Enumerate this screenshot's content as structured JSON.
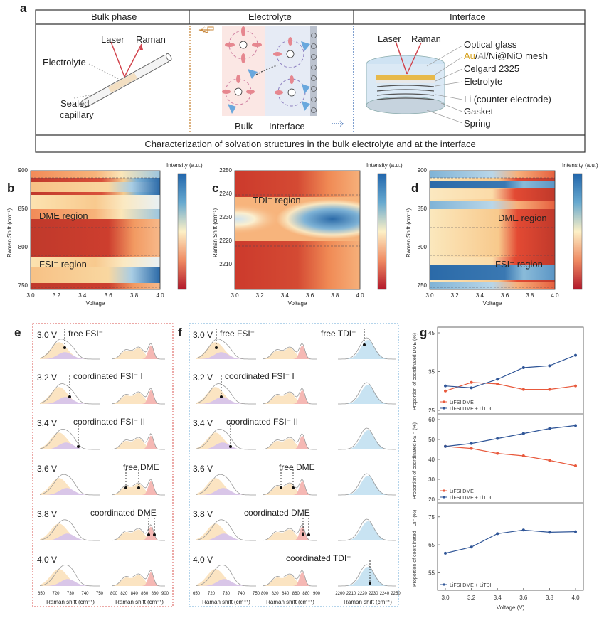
{
  "figure": {
    "panel_a": {
      "letter": "a",
      "headers": {
        "bulk": "Bulk phase",
        "electrolyte": "Electrolyte",
        "interface": "Interface"
      },
      "bulk_labels": {
        "laser": "Laser",
        "raman": "Raman",
        "electrolyte": "Electrolyte",
        "sealed1": "Sealed",
        "sealed2": "capillary"
      },
      "center_labels": {
        "bulk": "Bulk",
        "interface": "Interface"
      },
      "cell_labels": {
        "laser": "Laser",
        "raman": "Raman",
        "optical_glass": "Optical glass",
        "mesh_au": "Au",
        "mesh_al": "Al",
        "mesh_rest": "/Ni@NiO mesh",
        "celgard": "Celgard 2325",
        "electrolyte": "Eletrolyte",
        "li": "Li (counter electrode)",
        "gasket": "Gasket",
        "spring": "Spring"
      },
      "caption": "Characterization of solvation structures in the bulk electrolyte and at the interface",
      "colors": {
        "bulk": "#c8873a",
        "interface": "#3d6db5",
        "raman": "#d2454e"
      }
    },
    "heatmaps": [
      {
        "letter": "b",
        "y_title": "Raman Shift (cm⁻¹)",
        "x_title": "Voltage",
        "cbar_title": "Intensity (a.u.)",
        "y_ticks": [
          "900",
          "850",
          "800",
          "750"
        ],
        "x_ticks": [
          "3.0",
          "3.2",
          "3.4",
          "3.6",
          "3.8",
          "4.0"
        ],
        "regions": [
          {
            "text": "DME region"
          },
          {
            "text": "FSI⁻ region"
          }
        ]
      },
      {
        "letter": "c",
        "y_title": "Raman Shift (cm⁻¹)",
        "x_title": "Voltage",
        "cbar_title": "Intensity (a.u.)",
        "y_ticks": [
          "2250",
          "2240",
          "2230",
          "2220",
          "2210"
        ],
        "x_ticks": [
          "3.0",
          "3.2",
          "3.4",
          "3.6",
          "3.8",
          "4.0"
        ],
        "regions": [
          {
            "text": "TDI⁻ region"
          }
        ]
      },
      {
        "letter": "d",
        "y_title": "Raman Shift (cm⁻¹)",
        "x_title": "Voltage",
        "cbar_title": "Intensity (a.u.)",
        "y_ticks": [
          "900",
          "850",
          "800",
          "750"
        ],
        "x_ticks": [
          "3.0",
          "3.2",
          "3.4",
          "3.6",
          "3.8",
          "4.0"
        ],
        "regions": [
          {
            "text": "DME region"
          },
          {
            "text": "FSI⁻ region"
          }
        ]
      }
    ],
    "panel_e": {
      "letter": "e",
      "voltages": [
        "3.0 V",
        "3.2 V",
        "3.4 V",
        "3.6 V",
        "3.8 V",
        "4.0 V"
      ],
      "annotations": [
        "free FSI⁻",
        "coordinated FSI⁻ I",
        "coordinated FSI⁻ II",
        "free DME",
        "coordinated DME"
      ],
      "axis_ticks": [
        [
          "650",
          "720",
          "730",
          "740",
          "750"
        ],
        [
          "800",
          "820",
          "840",
          "860",
          "880",
          "900"
        ]
      ],
      "axis_titles": [
        "Raman shift (cm⁻¹)",
        "Raman shift (cm⁻¹)"
      ]
    },
    "panel_f": {
      "letter": "f",
      "voltages": [
        "3.0 V",
        "3.2 V",
        "3.4 V",
        "3.6 V",
        "3.8 V",
        "4.0 V"
      ],
      "annotations": [
        "free FSI⁻",
        "free TDI⁻",
        "coordinated FSI⁻ I",
        "coordinated FSI⁻ II",
        "free DME",
        "coordinated DME",
        "coordinated TDI⁻"
      ],
      "axis_ticks": [
        [
          "650",
          "720",
          "730",
          "740",
          "750"
        ],
        [
          "800",
          "820",
          "840",
          "860",
          "880",
          "900"
        ],
        [
          "2200",
          "2210",
          "2220",
          "2230",
          "2240",
          "2250"
        ]
      ],
      "axis_titles": [
        "Raman shift (cm⁻¹)",
        "Raman shift (cm⁻¹)",
        "Raman shift (cm⁻¹)"
      ]
    },
    "chart_data": [
      {
        "type": "line",
        "panel": "g-top",
        "ylabel": "Proportion of coordinated DME (%)",
        "x": [
          3.0,
          3.2,
          3.4,
          3.6,
          3.8,
          4.0
        ],
        "ylim": [
          25,
          45
        ],
        "y_ticks": [
          25,
          35,
          45
        ],
        "series": [
          {
            "name": "LiFSI DME",
            "color": "#e8593c",
            "values": [
              30.0,
              32.2,
              31.8,
              30.4,
              30.4,
              31.3
            ]
          },
          {
            "name": "LiFSI DME + LiTDI",
            "color": "#2f5597",
            "values": [
              31.3,
              30.8,
              33.0,
              36.0,
              36.5,
              39.2
            ]
          }
        ]
      },
      {
        "type": "line",
        "panel": "g-mid",
        "ylabel": "Proportion of coordinated FSI⁻ (%)",
        "x": [
          3.0,
          3.2,
          3.4,
          3.6,
          3.8,
          4.0
        ],
        "ylim": [
          20,
          60
        ],
        "y_ticks": [
          20,
          30,
          40,
          50,
          60
        ],
        "series": [
          {
            "name": "LiFSI DME",
            "color": "#e8593c",
            "values": [
              46.5,
              45.5,
              43.0,
              41.8,
              39.5,
              36.8
            ]
          },
          {
            "name": "LiFSI DME + LiTDI",
            "color": "#2f5597",
            "values": [
              46.5,
              48.0,
              50.5,
              53.0,
              55.5,
              57.0
            ]
          }
        ]
      },
      {
        "type": "line",
        "panel": "g-bot",
        "ylabel": "Proportion of coordinated TDI⁻ (%)",
        "xlabel": "Voltage (V)",
        "x": [
          3.0,
          3.2,
          3.4,
          3.6,
          3.8,
          4.0
        ],
        "x_ticks": [
          "3.0",
          "3.2",
          "3.4",
          "3.6",
          "3.8",
          "4.0"
        ],
        "ylim": [
          50,
          78
        ],
        "y_ticks": [
          55,
          65,
          75
        ],
        "series": [
          {
            "name": "LiFSI DME + LiTDI",
            "color": "#2f5597",
            "values": [
              62.0,
              64.2,
              69.0,
              70.3,
              69.5,
              69.7
            ]
          }
        ]
      }
    ],
    "panel_g_letter": "g"
  }
}
